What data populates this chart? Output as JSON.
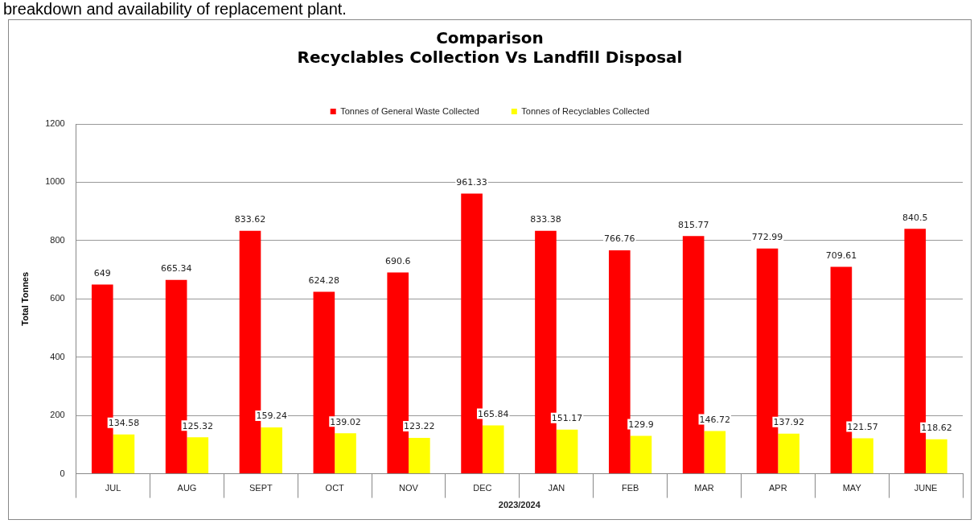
{
  "chart_data": {
    "type": "bar",
    "title": [
      "Comparison",
      "Recyclables Collection Vs Landfill Disposal"
    ],
    "xlabel": "2023/2024",
    "ylabel": "Total Tonnes",
    "categories": [
      "JUL",
      "AUG",
      "SEPT",
      "OCT",
      "NOV",
      "DEC",
      "JAN",
      "FEB",
      "MAR",
      "APR",
      "MAY",
      "JUNE"
    ],
    "series": [
      {
        "name": "Tonnes of General Waste Collected",
        "color": "#ff0000",
        "values": [
          649,
          665.34,
          833.62,
          624.28,
          690.6,
          961.33,
          833.38,
          766.76,
          815.77,
          772.99,
          709.61,
          840.5
        ]
      },
      {
        "name": "Tonnes of Recyclables Collected",
        "color": "#ffff00",
        "values": [
          134.58,
          125.32,
          159.24,
          139.02,
          123.22,
          165.84,
          151.17,
          129.9,
          146.72,
          137.92,
          121.57,
          118.62
        ]
      }
    ],
    "ylim": [
      0,
      1200
    ],
    "yticks": [
      0,
      200,
      400,
      600,
      800,
      1000,
      1200
    ],
    "grid": "y",
    "legend": "top",
    "data_labels": true,
    "annotations": [
      "breakdown and availability of replacement plant."
    ]
  }
}
